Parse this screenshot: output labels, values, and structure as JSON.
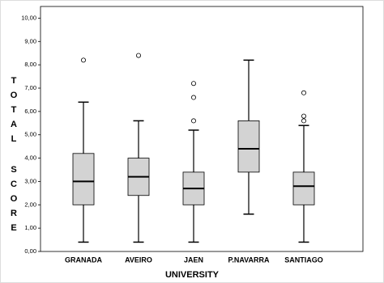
{
  "chart_data": {
    "type": "box",
    "xlabel": "UNIVERSITY",
    "ylabel": "TOTAL SCORE",
    "categories": [
      "GRANADA",
      "AVEIRO",
      "JAEN",
      "P.NAVARRA",
      "SANTIAGO"
    ],
    "boxes": [
      {
        "whislo": 0.4,
        "q1": 2.0,
        "med": 3.0,
        "q3": 4.2,
        "whishi": 6.4,
        "fliers": [
          8.2
        ]
      },
      {
        "whislo": 0.4,
        "q1": 2.4,
        "med": 3.2,
        "q3": 4.0,
        "whishi": 5.6,
        "fliers": [
          8.4
        ]
      },
      {
        "whislo": 0.4,
        "q1": 2.0,
        "med": 2.7,
        "q3": 3.4,
        "whishi": 5.2,
        "fliers": [
          5.6,
          6.6,
          7.2
        ]
      },
      {
        "whislo": 1.6,
        "q1": 3.4,
        "med": 4.4,
        "q3": 5.6,
        "whishi": 8.2,
        "fliers": []
      },
      {
        "whislo": 0.4,
        "q1": 2.0,
        "med": 2.8,
        "q3": 3.4,
        "whishi": 5.4,
        "fliers": [
          5.6,
          5.8,
          6.8
        ]
      }
    ],
    "color": "#d3d3d3",
    "ylim": [
      0,
      10.5
    ],
    "yticks": [
      {
        "value": 0,
        "label": "0,00"
      },
      {
        "value": 1,
        "label": "1,00"
      },
      {
        "value": 2,
        "label": "2,00"
      },
      {
        "value": 3,
        "label": "3,00"
      },
      {
        "value": 4,
        "label": "4,00"
      },
      {
        "value": 5,
        "label": "5,00"
      },
      {
        "value": 6,
        "label": "6,00"
      },
      {
        "value": 7,
        "label": "7,00"
      },
      {
        "value": 8,
        "label": "8,00"
      },
      {
        "value": 9,
        "label": "9,00"
      },
      {
        "value": 10,
        "label": "10,00"
      }
    ]
  }
}
